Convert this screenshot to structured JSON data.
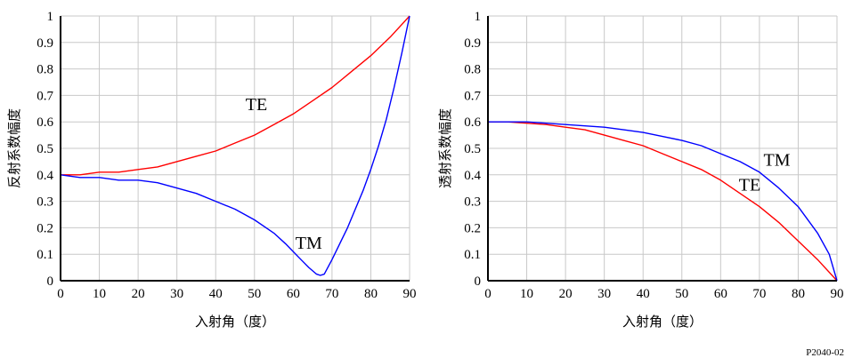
{
  "figure_id": "P2040-02",
  "chart_data": [
    {
      "type": "line",
      "xlabel": "入射角（度）",
      "ylabel": "反射系数幅度",
      "xlim": [
        0,
        90
      ],
      "ylim": [
        0,
        1
      ],
      "x_ticks": [
        "0",
        "10",
        "20",
        "30",
        "40",
        "50",
        "60",
        "70",
        "80",
        "90"
      ],
      "y_ticks": [
        "0",
        "0.1",
        "0.2",
        "0.3",
        "0.4",
        "0.5",
        "0.6",
        "0.7",
        "0.8",
        "0.9",
        "1"
      ],
      "grid": true,
      "series": [
        {
          "name": "TE",
          "color": "#ff0000",
          "x": [
            0,
            5,
            10,
            15,
            20,
            25,
            30,
            35,
            40,
            45,
            50,
            55,
            60,
            65,
            70,
            75,
            80,
            85,
            90
          ],
          "y": [
            0.4,
            0.4,
            0.41,
            0.41,
            0.42,
            0.43,
            0.45,
            0.47,
            0.49,
            0.52,
            0.55,
            0.59,
            0.63,
            0.68,
            0.73,
            0.79,
            0.85,
            0.92,
            1.0
          ]
        },
        {
          "name": "TM",
          "color": "#0000ff",
          "x": [
            0,
            5,
            10,
            15,
            20,
            25,
            30,
            35,
            40,
            45,
            50,
            55,
            58,
            60,
            62,
            64,
            66,
            67,
            68,
            70,
            72,
            74,
            76,
            78,
            80,
            82,
            84,
            86,
            88,
            90
          ],
          "y": [
            0.4,
            0.39,
            0.39,
            0.38,
            0.38,
            0.37,
            0.35,
            0.33,
            0.3,
            0.27,
            0.23,
            0.18,
            0.14,
            0.11,
            0.08,
            0.05,
            0.025,
            0.02,
            0.025,
            0.08,
            0.14,
            0.2,
            0.27,
            0.34,
            0.42,
            0.51,
            0.61,
            0.73,
            0.86,
            1.0
          ]
        }
      ],
      "annotations": [
        {
          "text": "TE",
          "x": 50.5,
          "y": 0.645
        },
        {
          "text": "TM",
          "x": 64,
          "y": 0.12
        }
      ]
    },
    {
      "type": "line",
      "xlabel": "入射角（度）",
      "ylabel": "透射系数幅度",
      "xlim": [
        0,
        90
      ],
      "ylim": [
        0,
        1
      ],
      "x_ticks": [
        "0",
        "10",
        "20",
        "30",
        "40",
        "50",
        "60",
        "70",
        "80",
        "90"
      ],
      "y_ticks": [
        "0",
        "0.1",
        "0.2",
        "0.3",
        "0.4",
        "0.5",
        "0.6",
        "0.7",
        "0.8",
        "0.9",
        "1"
      ],
      "grid": true,
      "series": [
        {
          "name": "TE",
          "color": "#ff0000",
          "x": [
            0,
            5,
            10,
            15,
            20,
            25,
            30,
            35,
            40,
            45,
            50,
            55,
            60,
            65,
            70,
            75,
            80,
            85,
            90
          ],
          "y": [
            0.6,
            0.6,
            0.595,
            0.59,
            0.58,
            0.57,
            0.55,
            0.53,
            0.51,
            0.48,
            0.45,
            0.42,
            0.38,
            0.33,
            0.28,
            0.22,
            0.15,
            0.08,
            0.0
          ]
        },
        {
          "name": "TM",
          "color": "#0000ff",
          "x": [
            0,
            5,
            10,
            15,
            20,
            25,
            30,
            35,
            40,
            45,
            50,
            55,
            60,
            65,
            70,
            75,
            80,
            85,
            88,
            90
          ],
          "y": [
            0.6,
            0.6,
            0.6,
            0.595,
            0.59,
            0.585,
            0.58,
            0.57,
            0.56,
            0.545,
            0.53,
            0.51,
            0.48,
            0.45,
            0.41,
            0.35,
            0.28,
            0.18,
            0.1,
            0.0
          ]
        }
      ],
      "annotations": [
        {
          "text": "TM",
          "x": 74.5,
          "y": 0.435
        },
        {
          "text": "TE",
          "x": 67.5,
          "y": 0.34
        }
      ]
    }
  ]
}
